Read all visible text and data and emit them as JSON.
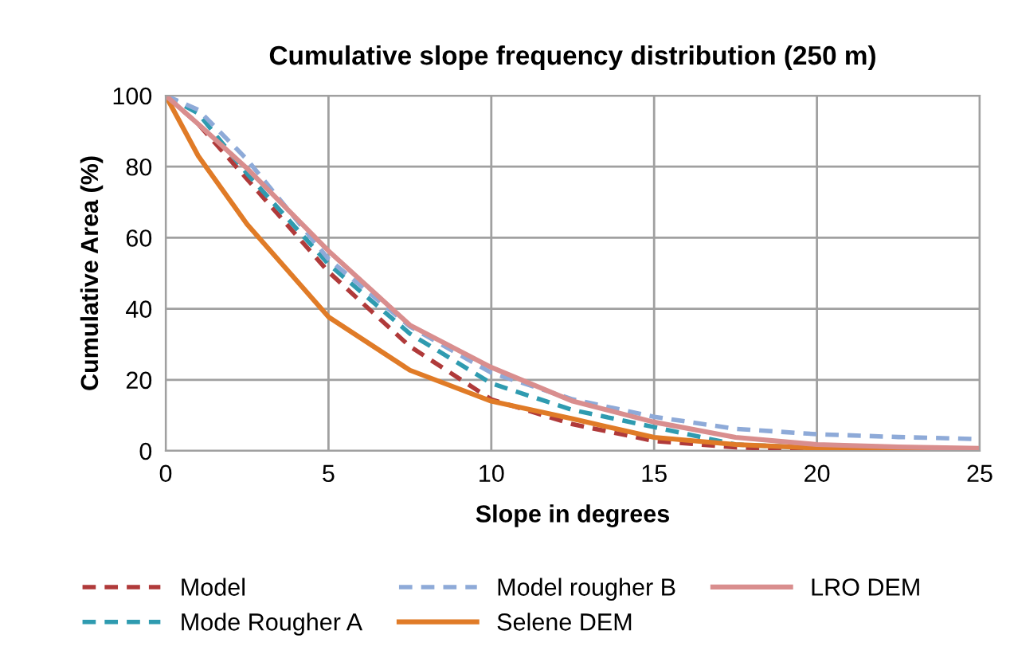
{
  "chart_data": {
    "type": "line",
    "title": "Cumulative slope frequency distribution (250 m)",
    "xlabel": "Slope in degrees",
    "ylabel": "Cumulative Area (%)",
    "x": [
      0,
      1,
      2.5,
      5,
      7.5,
      10,
      12.5,
      15,
      17.5,
      20,
      22.5,
      25
    ],
    "series": [
      {
        "name": "Model",
        "color": "#b03a3a",
        "line_style": "dashed",
        "values": [
          100,
          92,
          76.5,
          50.4,
          29.4,
          14.5,
          7.5,
          2.8,
          1,
          0.3,
          0.1,
          0
        ]
      },
      {
        "name": "Mode Rougher A",
        "color": "#2f9bb0",
        "line_style": "dashed",
        "values": [
          100,
          95,
          78,
          52.6,
          33,
          19,
          11.5,
          6.7,
          1.8,
          0.8,
          0.5,
          0.3
        ]
      },
      {
        "name": "Model rougher B",
        "color": "#8eaad8",
        "line_style": "dashed",
        "values": [
          100,
          96,
          82,
          54,
          35,
          22,
          14.5,
          9.6,
          6.2,
          4.7,
          3.9,
          3.3
        ]
      },
      {
        "name": "Selene DEM",
        "color": "#e07b27",
        "line_style": "solid",
        "values": [
          100,
          83,
          63.8,
          37.7,
          22.7,
          14,
          9,
          3.8,
          1.8,
          0.8,
          0.5,
          0.3
        ]
      },
      {
        "name": "LRO DEM",
        "color": "#d98e8e",
        "line_style": "solid",
        "values": [
          100,
          92,
          79.5,
          56.3,
          35.4,
          23.5,
          14,
          8.1,
          3.8,
          1.8,
          1.1,
          0.7
        ]
      }
    ],
    "xlim": [
      0,
      25
    ],
    "ylim": [
      0,
      100
    ],
    "xticks": [
      0,
      5,
      10,
      15,
      20,
      25
    ],
    "yticks": [
      0,
      20,
      40,
      60,
      80,
      100
    ],
    "grid": true,
    "legend": "bottom",
    "marker": "none"
  }
}
